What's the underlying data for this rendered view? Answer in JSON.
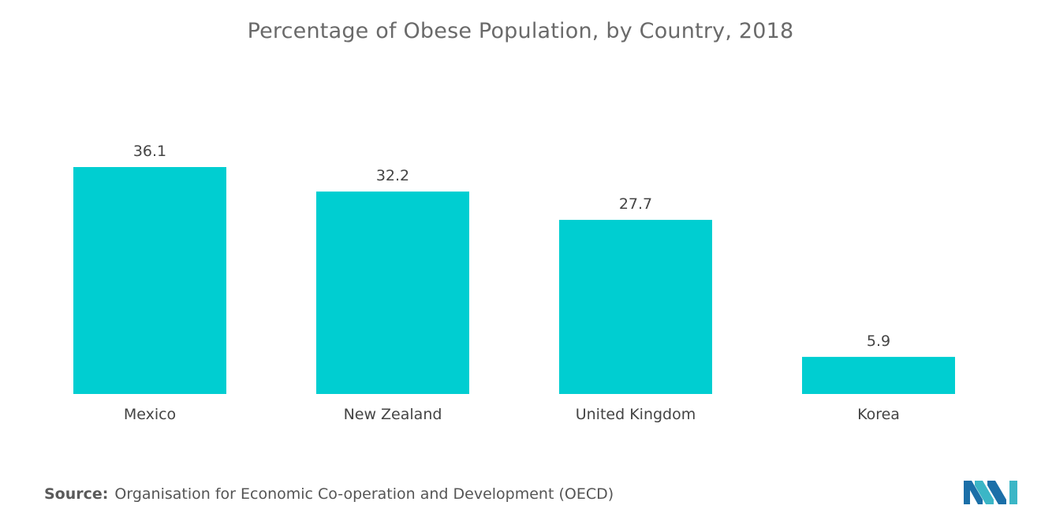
{
  "chart_data": {
    "type": "bar",
    "title": "Percentage of Obese Population, by Country, 2018",
    "categories": [
      "Mexico",
      "New Zealand",
      "United Kingdom",
      "Korea"
    ],
    "values": [
      36.1,
      32.2,
      27.7,
      5.9
    ],
    "value_labels": [
      "36.1",
      "32.2",
      "27.7",
      "5.9"
    ],
    "xlabel": "",
    "ylabel": "",
    "ylim": [
      0,
      36.1
    ],
    "grid": false,
    "legend": "none",
    "bar_color": "#00ced1"
  },
  "source": {
    "label": "Source:",
    "text": "Organisation for Economic Co-operation and Development (OECD)"
  },
  "logo": {
    "icon": "mordor-intelligence-logo-icon",
    "colors": [
      "#1b6fa8",
      "#3bb6c6"
    ]
  }
}
